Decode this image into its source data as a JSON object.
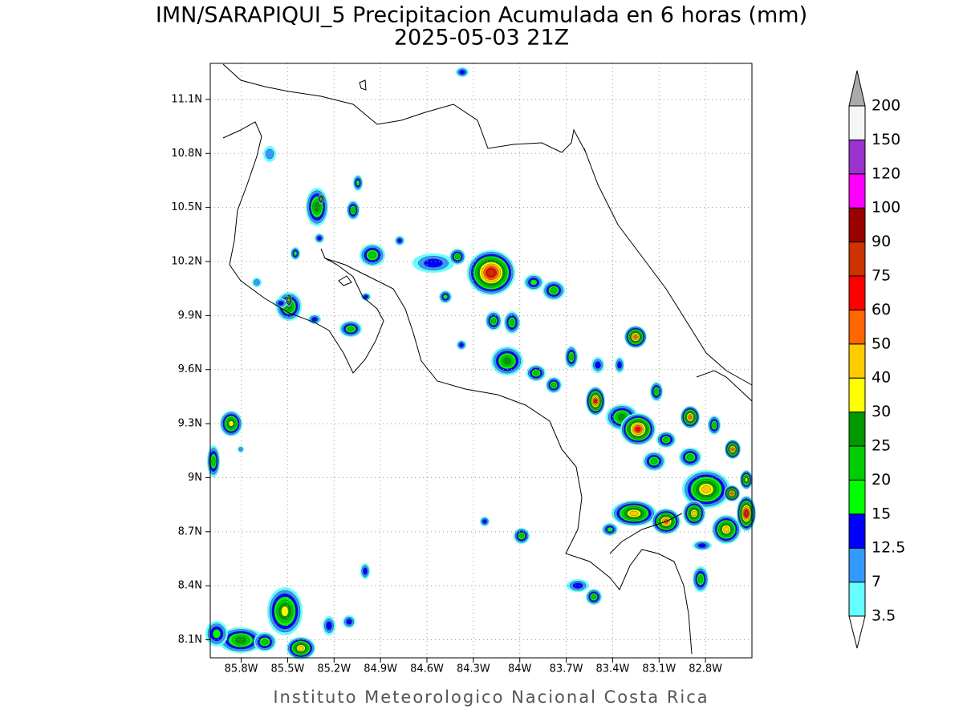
{
  "map": {
    "title": "IMN/SARAPIQUI_5 Precipitacion Acumulada en 6 horas (mm)",
    "subtitle": "2025-05-03 21Z",
    "footer": "Instituto Meteorologico Nacional Costa Rica",
    "xlim": [
      -86.0,
      -82.5
    ],
    "ylim": [
      8.0,
      11.3
    ],
    "xticks": [
      {
        "value": -85.8,
        "label": "85.8W"
      },
      {
        "value": -85.5,
        "label": "85.5W"
      },
      {
        "value": -85.2,
        "label": "85.2W"
      },
      {
        "value": -84.9,
        "label": "84.9W"
      },
      {
        "value": -84.6,
        "label": "84.6W"
      },
      {
        "value": -84.3,
        "label": "84.3W"
      },
      {
        "value": -84.0,
        "label": "84W"
      },
      {
        "value": -83.7,
        "label": "83.7W"
      },
      {
        "value": -83.4,
        "label": "83.4W"
      },
      {
        "value": -83.1,
        "label": "83.1W"
      },
      {
        "value": -82.8,
        "label": "82.8W"
      }
    ],
    "yticks": [
      {
        "value": 8.1,
        "label": "8.1N"
      },
      {
        "value": 8.4,
        "label": "8.4N"
      },
      {
        "value": 8.7,
        "label": "8.7N"
      },
      {
        "value": 9.0,
        "label": "9N"
      },
      {
        "value": 9.3,
        "label": "9.3N"
      },
      {
        "value": 9.6,
        "label": "9.6N"
      },
      {
        "value": 9.9,
        "label": "9.9N"
      },
      {
        "value": 10.2,
        "label": "10.2N"
      },
      {
        "value": 10.5,
        "label": "10.5N"
      },
      {
        "value": 10.8,
        "label": "10.8N"
      },
      {
        "value": 11.1,
        "label": "11.1N"
      }
    ],
    "grid": true,
    "colorbar": {
      "levels": [
        3.5,
        7,
        12.5,
        15,
        20,
        25,
        30,
        40,
        50,
        60,
        75,
        90,
        100,
        120,
        150,
        200
      ],
      "colors": [
        "#66ffff",
        "#3399ff",
        "#0000ff",
        "#00ff00",
        "#00cc00",
        "#009900",
        "#ffff00",
        "#ffcc00",
        "#ff6600",
        "#ff0000",
        "#cc3300",
        "#990000",
        "#ff00ff",
        "#9933cc",
        "#f5f5f5"
      ],
      "over_color": "#aaaaaa",
      "under_color": "#ffffff"
    }
  }
}
